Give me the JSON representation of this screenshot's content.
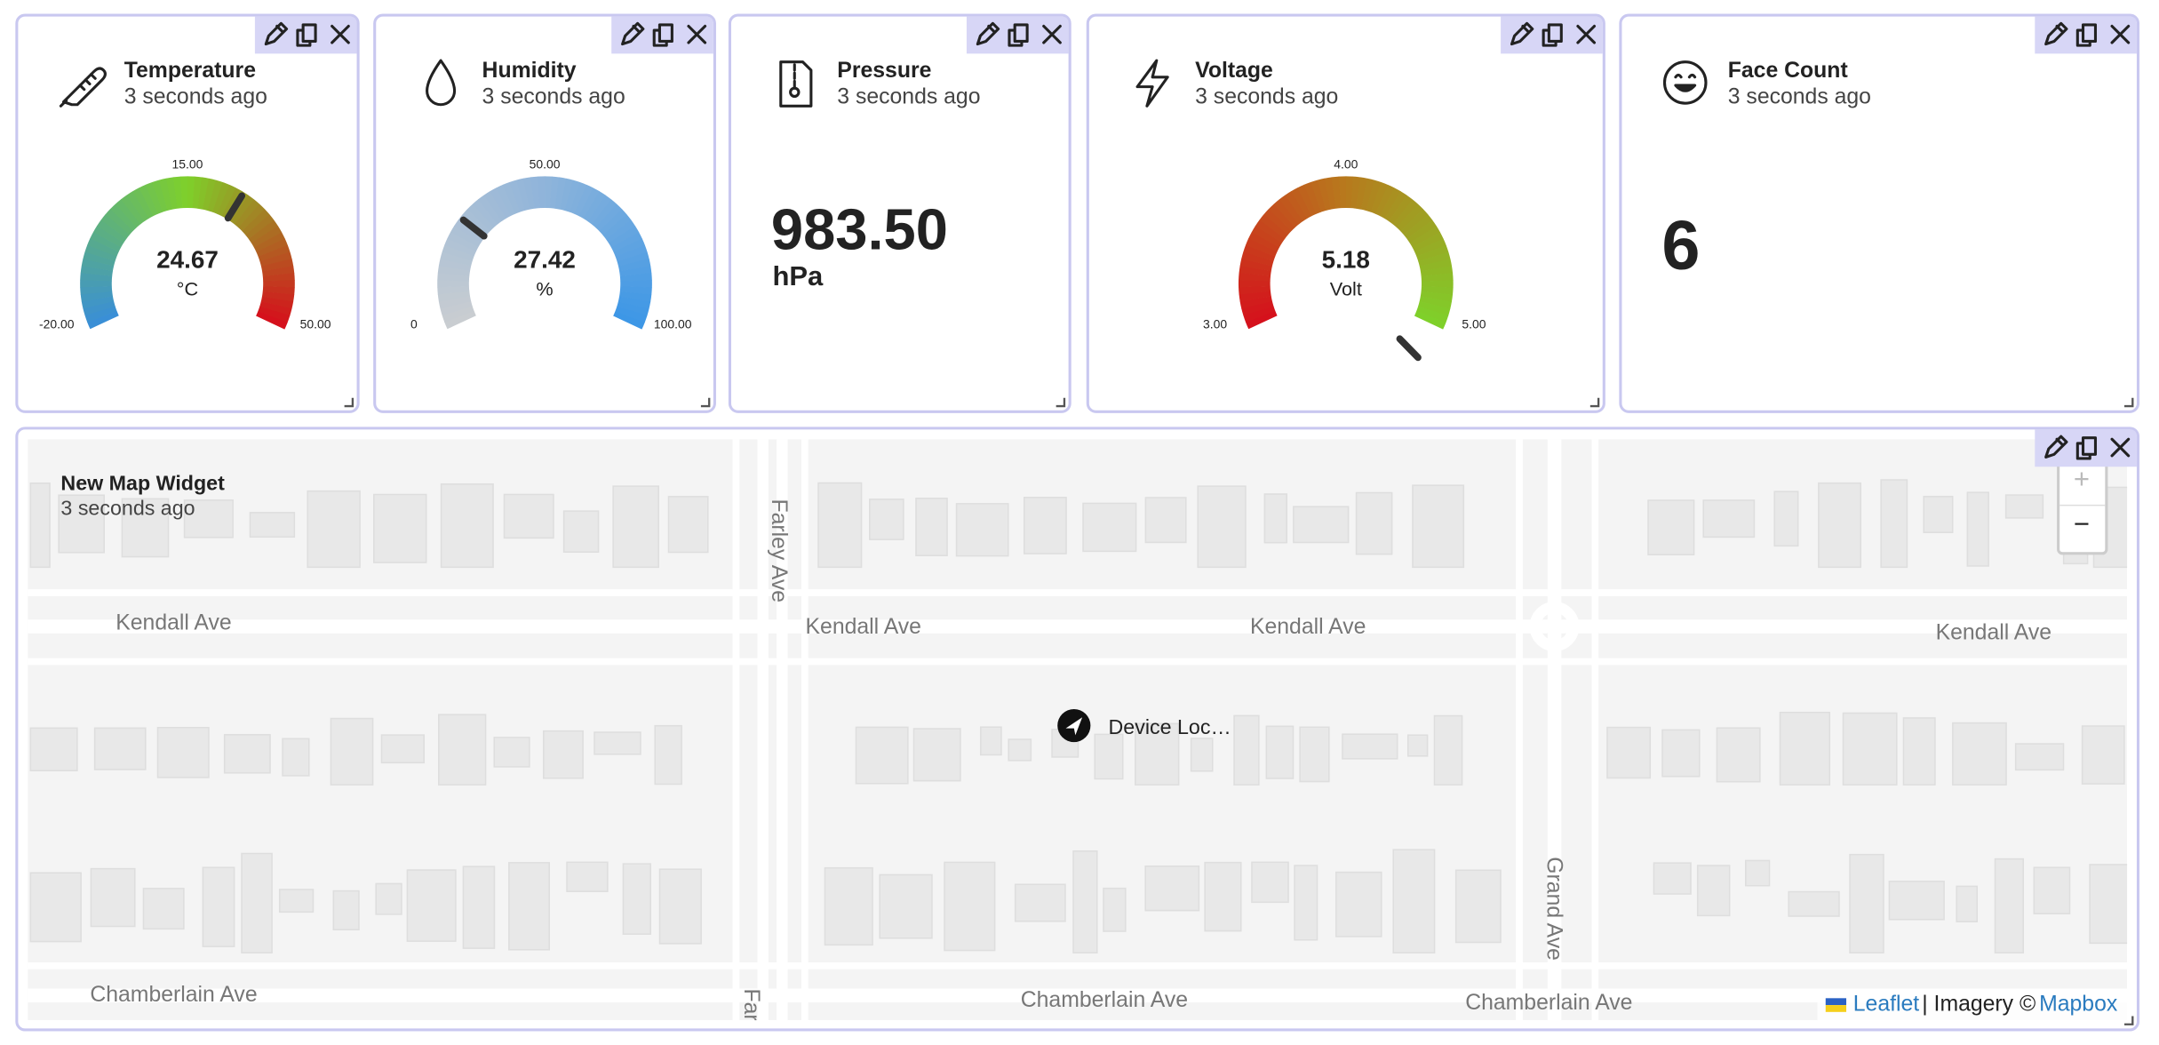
{
  "widgets": [
    {
      "title": "Temperature",
      "time": "3 seconds ago",
      "gauge": {
        "value": 24.67,
        "unit": "°C",
        "min": {
          "value": -20,
          "label": "-20.00"
        },
        "mid": {
          "value": 15,
          "label": "15.00"
        },
        "max": {
          "value": 50,
          "label": "50.00"
        },
        "colors": [
          "#3a8fd6",
          "#7fd02a",
          "#d5111c"
        ]
      }
    },
    {
      "title": "Humidity",
      "time": "3 seconds ago",
      "gauge": {
        "value": 27.42,
        "unit": "%",
        "min": {
          "value": 0,
          "label": "0"
        },
        "mid": {
          "value": 50,
          "label": "50.00"
        },
        "max": {
          "value": 100,
          "label": "100.00"
        },
        "colors": [
          "#c9cdd1",
          "#8fb4da",
          "#3d97e6"
        ]
      }
    },
    {
      "title": "Pressure",
      "time": "3 seconds ago",
      "value": "983.50",
      "unit": "hPa"
    },
    {
      "title": "Voltage",
      "time": "3 seconds ago",
      "gauge": {
        "value": 5.18,
        "unit": "Volt",
        "min": {
          "value": 3,
          "label": "3.00"
        },
        "mid": {
          "value": 4,
          "label": "4.00"
        },
        "max": {
          "value": 5,
          "label": "5.00"
        },
        "colors": [
          "#d5111c",
          "#b77a1d",
          "#7fd02a"
        ]
      }
    },
    {
      "title": "Face Count",
      "time": "3 seconds ago",
      "value": 6
    }
  ],
  "map": {
    "title": "New Map Widget",
    "time": "3 seconds ago",
    "zoom_in": "+",
    "zoom_out": "−",
    "marker": "Device Loc…",
    "streets": [
      "Kendall Ave",
      "Kendall Ave",
      "Kendall Ave",
      "Kendall Ave",
      "Farley Ave",
      "Chamberlain Ave",
      "Chamberlain Ave",
      "Chamberlain Ave",
      "Grand Ave",
      "Far"
    ],
    "attribution": {
      "leaflet": "Leaflet",
      "imagery": "| Imagery ©",
      "mapbox": "Mapbox"
    }
  }
}
